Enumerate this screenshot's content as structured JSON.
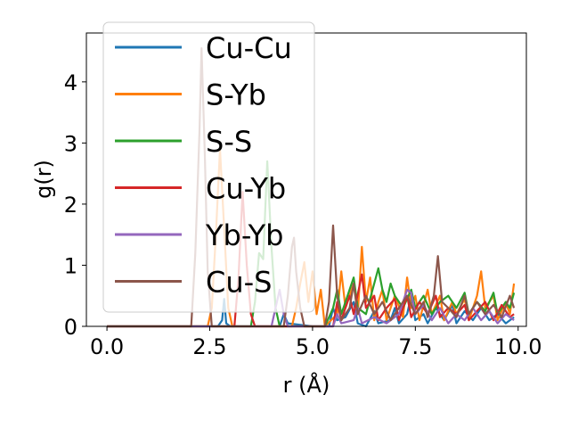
{
  "chart_data": {
    "type": "line",
    "title": "",
    "xlabel": "r (Å)",
    "ylabel": "g(r)",
    "xlim": [
      -0.5,
      10.2
    ],
    "ylim": [
      0,
      4.8
    ],
    "xticks": [
      0.0,
      2.5,
      5.0,
      7.5,
      10.0
    ],
    "xtick_labels": [
      "0.0",
      "2.5",
      "5.0",
      "7.5",
      "10.0"
    ],
    "yticks": [
      0,
      1,
      2,
      3,
      4
    ],
    "ytick_labels": [
      "0",
      "1",
      "2",
      "3",
      "4"
    ],
    "grid": false,
    "legend_position": "upper-left",
    "series": [
      {
        "name": "Cu-Cu",
        "color": "#1f77b4",
        "points": [
          [
            0,
            0
          ],
          [
            2.7,
            0
          ],
          [
            2.8,
            0.1
          ],
          [
            2.85,
            0.45
          ],
          [
            2.9,
            0.05
          ],
          [
            3.0,
            0
          ],
          [
            4.2,
            0
          ],
          [
            4.3,
            0.2
          ],
          [
            4.4,
            0.05
          ],
          [
            5.0,
            0
          ],
          [
            5.4,
            0
          ],
          [
            5.5,
            0.3
          ],
          [
            5.6,
            0.1
          ],
          [
            5.8,
            0.15
          ],
          [
            6.0,
            0.4
          ],
          [
            6.1,
            0.05
          ],
          [
            6.3,
            0
          ],
          [
            6.5,
            0.25
          ],
          [
            6.6,
            0.05
          ],
          [
            6.9,
            0.1
          ],
          [
            7.0,
            0.3
          ],
          [
            7.1,
            0.05
          ],
          [
            7.3,
            0.2
          ],
          [
            7.4,
            0.5
          ],
          [
            7.5,
            0.1
          ],
          [
            7.7,
            0.2
          ],
          [
            7.8,
            0.05
          ],
          [
            8.0,
            0.3
          ],
          [
            8.2,
            0.1
          ],
          [
            8.4,
            0.35
          ],
          [
            8.5,
            0.05
          ],
          [
            8.7,
            0.25
          ],
          [
            8.9,
            0.1
          ],
          [
            9.1,
            0.3
          ],
          [
            9.3,
            0.1
          ],
          [
            9.5,
            0.2
          ],
          [
            9.7,
            0.05
          ],
          [
            9.9,
            0.15
          ]
        ]
      },
      {
        "name": "S-Yb",
        "color": "#ff7f0e",
        "points": [
          [
            0,
            0
          ],
          [
            2.45,
            0
          ],
          [
            2.55,
            0.3
          ],
          [
            2.65,
            1.5
          ],
          [
            2.75,
            2.9
          ],
          [
            2.85,
            1.6
          ],
          [
            2.95,
            0.3
          ],
          [
            3.05,
            0
          ],
          [
            4.5,
            0
          ],
          [
            4.6,
            0.3
          ],
          [
            4.7,
            0.7
          ],
          [
            4.8,
            1.05
          ],
          [
            4.9,
            0.4
          ],
          [
            5.0,
            0.9
          ],
          [
            5.1,
            0.2
          ],
          [
            5.2,
            0.6
          ],
          [
            5.3,
            0
          ],
          [
            5.6,
            0.2
          ],
          [
            5.7,
            0.9
          ],
          [
            5.8,
            0.3
          ],
          [
            6.0,
            0.7
          ],
          [
            6.1,
            0.2
          ],
          [
            6.2,
            1.3
          ],
          [
            6.3,
            0.4
          ],
          [
            6.4,
            0.8
          ],
          [
            6.5,
            0.1
          ],
          [
            6.6,
            0.4
          ],
          [
            6.7,
            0.6
          ],
          [
            6.8,
            0.1
          ],
          [
            6.9,
            0.3
          ],
          [
            7.0,
            0.5
          ],
          [
            7.2,
            0.15
          ],
          [
            7.3,
            0.8
          ],
          [
            7.4,
            0.3
          ],
          [
            7.5,
            0.5
          ],
          [
            7.6,
            0.1
          ],
          [
            7.8,
            0.6
          ],
          [
            7.9,
            0.2
          ],
          [
            8.1,
            0.5
          ],
          [
            8.2,
            0.1
          ],
          [
            8.4,
            0.4
          ],
          [
            8.5,
            0.2
          ],
          [
            8.7,
            0.45
          ],
          [
            8.8,
            0.1
          ],
          [
            9.0,
            0.5
          ],
          [
            9.1,
            0.9
          ],
          [
            9.2,
            0.3
          ],
          [
            9.4,
            0.5
          ],
          [
            9.5,
            0.1
          ],
          [
            9.7,
            0.4
          ],
          [
            9.8,
            0.2
          ],
          [
            9.9,
            0.7
          ]
        ]
      },
      {
        "name": "S-S",
        "color": "#2ca02c",
        "points": [
          [
            0,
            0
          ],
          [
            3.5,
            0
          ],
          [
            3.6,
            0.4
          ],
          [
            3.7,
            1.2
          ],
          [
            3.8,
            1.1
          ],
          [
            3.9,
            2.7
          ],
          [
            4.0,
            1.3
          ],
          [
            4.1,
            0.3
          ],
          [
            4.2,
            0
          ],
          [
            5.3,
            0
          ],
          [
            5.5,
            0.3
          ],
          [
            5.6,
            0.6
          ],
          [
            5.7,
            0.2
          ],
          [
            5.8,
            0.4
          ],
          [
            6.0,
            0.8
          ],
          [
            6.1,
            0.3
          ],
          [
            6.3,
            0.2
          ],
          [
            6.5,
            0.7
          ],
          [
            6.6,
            0.95
          ],
          [
            6.7,
            0.6
          ],
          [
            6.8,
            0.4
          ],
          [
            6.9,
            0.7
          ],
          [
            7.0,
            0.5
          ],
          [
            7.2,
            0.3
          ],
          [
            7.4,
            0.6
          ],
          [
            7.5,
            0.3
          ],
          [
            7.7,
            0.5
          ],
          [
            7.9,
            0.2
          ],
          [
            8.1,
            0.4
          ],
          [
            8.3,
            0.5
          ],
          [
            8.5,
            0.3
          ],
          [
            8.7,
            0.55
          ],
          [
            8.8,
            0.2
          ],
          [
            9.0,
            0.4
          ],
          [
            9.2,
            0.25
          ],
          [
            9.4,
            0.55
          ],
          [
            9.5,
            0.2
          ],
          [
            9.7,
            0.4
          ],
          [
            9.8,
            0.3
          ],
          [
            9.9,
            0.55
          ]
        ]
      },
      {
        "name": "Cu-Yb",
        "color": "#d62728",
        "points": [
          [
            0,
            0
          ],
          [
            3.1,
            0
          ],
          [
            3.2,
            0.8
          ],
          [
            3.3,
            2.2
          ],
          [
            3.4,
            1.0
          ],
          [
            3.5,
            0.2
          ],
          [
            3.6,
            0
          ],
          [
            5.5,
            0
          ],
          [
            5.6,
            0.4
          ],
          [
            5.7,
            0.1
          ],
          [
            5.9,
            0.5
          ],
          [
            6.0,
            0.2
          ],
          [
            6.2,
            0.85
          ],
          [
            6.3,
            0.3
          ],
          [
            6.5,
            0.5
          ],
          [
            6.6,
            0.1
          ],
          [
            6.8,
            0.3
          ],
          [
            7.0,
            0.45
          ],
          [
            7.1,
            0.1
          ],
          [
            7.3,
            0.5
          ],
          [
            7.4,
            0.15
          ],
          [
            7.6,
            0.4
          ],
          [
            7.8,
            0.2
          ],
          [
            8.0,
            0.5
          ],
          [
            8.1,
            0.15
          ],
          [
            8.3,
            0.3
          ],
          [
            8.5,
            0.2
          ],
          [
            8.7,
            0.35
          ],
          [
            8.8,
            0.1
          ],
          [
            9.0,
            0.25
          ],
          [
            9.2,
            0.4
          ],
          [
            9.4,
            0.1
          ],
          [
            9.6,
            0.35
          ],
          [
            9.8,
            0.15
          ],
          [
            9.9,
            0.2
          ]
        ]
      },
      {
        "name": "Yb-Yb",
        "color": "#9467bd",
        "points": [
          [
            0,
            0
          ],
          [
            4.0,
            0
          ],
          [
            4.1,
            0.3
          ],
          [
            4.2,
            0.6
          ],
          [
            4.3,
            0.2
          ],
          [
            4.4,
            0
          ],
          [
            5.5,
            0
          ],
          [
            5.6,
            0.2
          ],
          [
            5.7,
            0.05
          ],
          [
            6.0,
            0.1
          ],
          [
            6.1,
            0.3
          ],
          [
            6.2,
            0.05
          ],
          [
            6.5,
            0.15
          ],
          [
            6.8,
            0.05
          ],
          [
            7.1,
            0.2
          ],
          [
            7.3,
            0.6
          ],
          [
            7.4,
            0.55
          ],
          [
            7.5,
            0.2
          ],
          [
            7.7,
            0.35
          ],
          [
            7.9,
            0.1
          ],
          [
            8.1,
            0.3
          ],
          [
            8.3,
            0.05
          ],
          [
            8.5,
            0.2
          ],
          [
            8.7,
            0.1
          ],
          [
            8.9,
            0.3
          ],
          [
            9.1,
            0.1
          ],
          [
            9.3,
            0.25
          ],
          [
            9.5,
            0.05
          ],
          [
            9.7,
            0.2
          ],
          [
            9.9,
            0.1
          ]
        ]
      },
      {
        "name": "Cu-S",
        "color": "#8c564b",
        "points": [
          [
            0,
            0
          ],
          [
            2.05,
            0
          ],
          [
            2.15,
            1.2
          ],
          [
            2.25,
            3.2
          ],
          [
            2.3,
            4.55
          ],
          [
            2.38,
            2.8
          ],
          [
            2.45,
            0.9
          ],
          [
            2.55,
            0
          ],
          [
            4.3,
            0
          ],
          [
            4.4,
            0.5
          ],
          [
            4.5,
            1.3
          ],
          [
            4.55,
            1.45
          ],
          [
            4.6,
            0.9
          ],
          [
            4.7,
            0.3
          ],
          [
            4.8,
            0
          ],
          [
            5.3,
            0
          ],
          [
            5.4,
            0.4
          ],
          [
            5.5,
            1.65
          ],
          [
            5.6,
            0.5
          ],
          [
            5.7,
            0.1
          ],
          [
            5.9,
            0.3
          ],
          [
            6.0,
            0.7
          ],
          [
            6.1,
            0.2
          ],
          [
            6.3,
            0.5
          ],
          [
            6.5,
            0.2
          ],
          [
            6.7,
            0.4
          ],
          [
            6.9,
            0.1
          ],
          [
            7.1,
            0.3
          ],
          [
            7.3,
            0.5
          ],
          [
            7.5,
            0.2
          ],
          [
            7.7,
            0.4
          ],
          [
            7.8,
            0.15
          ],
          [
            7.95,
            0.5
          ],
          [
            8.05,
            1.15
          ],
          [
            8.15,
            0.4
          ],
          [
            8.3,
            0.3
          ],
          [
            8.5,
            0.15
          ],
          [
            8.7,
            0.5
          ],
          [
            8.8,
            0.2
          ],
          [
            9.0,
            0.4
          ],
          [
            9.2,
            0.2
          ],
          [
            9.4,
            0.35
          ],
          [
            9.6,
            0.15
          ],
          [
            9.8,
            0.5
          ],
          [
            9.9,
            0.3
          ]
        ]
      }
    ]
  }
}
